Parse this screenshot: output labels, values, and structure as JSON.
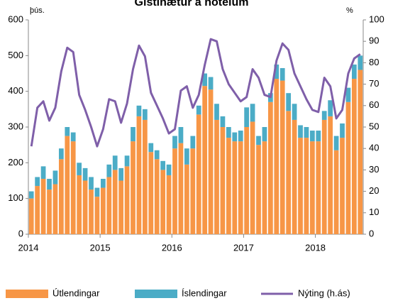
{
  "chart_data": {
    "type": "bar",
    "title": "Gistinætur á hótelum",
    "y_label": "þús.",
    "y2_label": "%",
    "categories": [
      "2014",
      null,
      null,
      null,
      null,
      null,
      null,
      null,
      null,
      null,
      null,
      null,
      "2015",
      null,
      null,
      null,
      null,
      null,
      null,
      null,
      null,
      null,
      null,
      null,
      "2016",
      null,
      null,
      null,
      null,
      null,
      null,
      null,
      null,
      null,
      null,
      null,
      "2017",
      null,
      null,
      null,
      null,
      null,
      null,
      null,
      null,
      null,
      null,
      null,
      "2018",
      null,
      null,
      null,
      null,
      null,
      null,
      null
    ],
    "series": [
      {
        "name": "Útlendingar",
        "color": "#f79646",
        "values": [
          100,
          135,
          155,
          125,
          140,
          210,
          275,
          260,
          165,
          150,
          125,
          105,
          130,
          160,
          180,
          150,
          190,
          260,
          330,
          320,
          230,
          210,
          180,
          165,
          240,
          255,
          195,
          240,
          335,
          415,
          405,
          320,
          300,
          270,
          260,
          260,
          300,
          315,
          250,
          260,
          370,
          435,
          430,
          345,
          320,
          270,
          270,
          260,
          260,
          320,
          330,
          235,
          270,
          370,
          435,
          460
        ]
      },
      {
        "name": "Íslendingar",
        "color": "#4bacc6",
        "values": [
          20,
          25,
          35,
          30,
          38,
          30,
          25,
          25,
          35,
          35,
          35,
          25,
          25,
          35,
          40,
          35,
          30,
          40,
          30,
          30,
          25,
          25,
          25,
          30,
          35,
          45,
          45,
          35,
          25,
          35,
          35,
          45,
          30,
          30,
          25,
          30,
          55,
          50,
          25,
          40,
          25,
          40,
          35,
          50,
          45,
          35,
          30,
          30,
          30,
          25,
          45,
          40,
          40,
          40,
          40,
          40
        ]
      },
      {
        "name": "Nýting (h.ás)",
        "type": "line",
        "axis": "y2",
        "color": "#7f5fa9",
        "values": [
          41,
          59,
          62,
          53,
          59,
          76,
          87,
          85,
          65,
          58,
          50,
          41,
          49,
          63,
          62,
          52,
          61,
          77,
          88,
          83,
          66,
          60,
          54,
          47,
          49,
          67,
          69,
          59,
          65,
          79,
          91,
          90,
          77,
          70,
          66,
          62,
          64,
          77,
          73,
          65,
          64,
          81,
          89,
          86,
          75,
          69,
          63,
          58,
          57,
          73,
          69,
          54,
          58,
          75,
          82,
          84
        ]
      }
    ],
    "ylim": [
      0,
      600
    ],
    "yticks": [
      0,
      100,
      200,
      300,
      400,
      500,
      600
    ],
    "y2lim": [
      0,
      100
    ],
    "y2ticks": [
      0,
      10,
      20,
      30,
      40,
      50,
      60,
      70,
      80,
      90,
      100
    ],
    "stacked": true,
    "grid": false,
    "legend": "bottom"
  }
}
